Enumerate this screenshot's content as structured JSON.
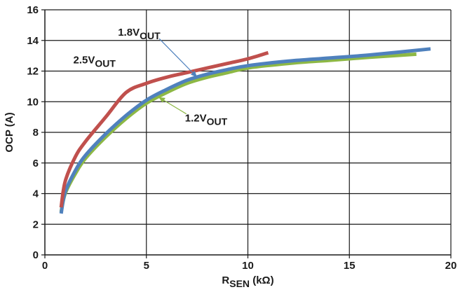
{
  "chart_data": {
    "type": "line",
    "title": "",
    "xlabel": {
      "main": "R",
      "sub": "SEN",
      "tail": " (kΩ)"
    },
    "ylabel": "OCP (A)",
    "xlim": [
      0,
      20
    ],
    "ylim": [
      0,
      16
    ],
    "xticks": [
      0,
      5,
      10,
      15,
      20
    ],
    "yticks": [
      0,
      2,
      4,
      6,
      8,
      10,
      12,
      14,
      16
    ],
    "xtick_labels": [
      "0",
      "5",
      "10",
      "15",
      "20"
    ],
    "ytick_labels": [
      "0",
      "2",
      "4",
      "6",
      "8",
      "10",
      "12",
      "14",
      "16"
    ],
    "grid": true,
    "series": [
      {
        "name": "1.2V_OUT",
        "label_main": "1.2V",
        "label_sub": "OUT",
        "color": "#8db845",
        "x": [
          0.8,
          1.0,
          1.5,
          2.0,
          3.0,
          4.0,
          5.0,
          6.0,
          7.0,
          8.0,
          9.0,
          10.0,
          12.0,
          14.0,
          16.0,
          18.3
        ],
        "y": [
          2.8,
          4.0,
          5.3,
          6.3,
          7.7,
          8.9,
          9.9,
          10.6,
          11.2,
          11.6,
          11.9,
          12.2,
          12.5,
          12.7,
          12.9,
          13.1
        ]
      },
      {
        "name": "1.8V_OUT",
        "label_main": "1.8V",
        "label_sub": "OUT",
        "color": "#4f81bd",
        "x": [
          0.8,
          1.0,
          1.5,
          2.0,
          3.0,
          4.0,
          5.0,
          6.0,
          7.0,
          8.0,
          9.0,
          10.0,
          12.0,
          14.0,
          16.0,
          19.0
        ],
        "y": [
          2.7,
          4.1,
          5.5,
          6.5,
          7.9,
          9.1,
          10.1,
          10.8,
          11.4,
          11.8,
          12.1,
          12.35,
          12.65,
          12.85,
          13.05,
          13.45
        ]
      },
      {
        "name": "2.5V_OUT",
        "label_main": "2.5V",
        "label_sub": "OUT",
        "color": "#c0504d",
        "x": [
          0.8,
          1.0,
          1.5,
          2.0,
          3.0,
          4.0,
          5.0,
          6.0,
          7.0,
          8.0,
          9.0,
          10.0,
          11.0
        ],
        "y": [
          3.1,
          4.8,
          6.4,
          7.4,
          9.0,
          10.6,
          11.2,
          11.6,
          11.9,
          12.2,
          12.5,
          12.8,
          13.2
        ]
      }
    ],
    "annotations": [
      {
        "series": 1,
        "main": "1.8V",
        "sub": "OUT",
        "text_at": [
          3.6,
          14.3
        ],
        "arrow_to": [
          7.5,
          11.6
        ]
      },
      {
        "series": 2,
        "main": "2.5V",
        "sub": "OUT",
        "text_at": [
          1.4,
          12.5
        ],
        "arrow_to": null
      },
      {
        "series": 0,
        "main": "1.2V",
        "sub": "OUT",
        "text_at": [
          6.9,
          8.7
        ],
        "arrow_to": [
          5.6,
          10.3
        ]
      }
    ]
  }
}
